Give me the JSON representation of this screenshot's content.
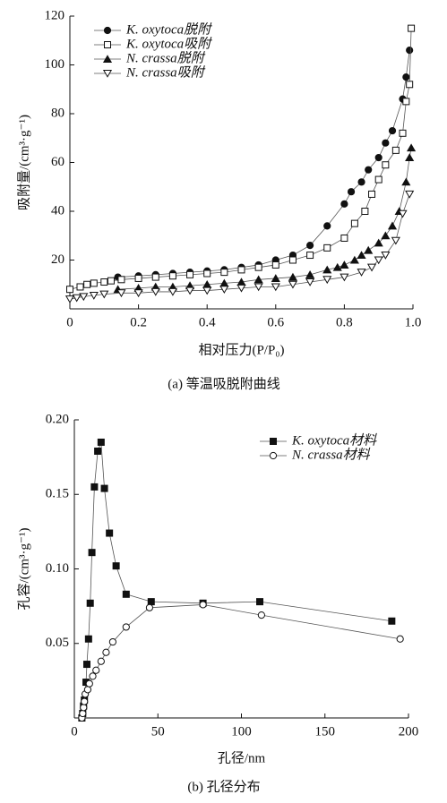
{
  "chart_data": [
    {
      "type": "line",
      "caption": "(a) 等温吸脱附曲线",
      "x_label": "相对压力(P/P₀)",
      "y_label": "吸附量/(cm³·g⁻¹)",
      "xlim": [
        0,
        1.0
      ],
      "ylim": [
        0,
        120
      ],
      "xticks": [
        0,
        0.2,
        0.4,
        0.6,
        0.8,
        {
          "value": 1.0,
          "label": "1.0"
        }
      ],
      "yticks": [
        20,
        40,
        60,
        80,
        100,
        120
      ],
      "legend": "upper left",
      "series": [
        {
          "name": "K. oxytoca脱附",
          "color": "#111111",
          "marker": "circle-filled",
          "x": [
            0.14,
            0.2,
            0.25,
            0.3,
            0.35,
            0.4,
            0.45,
            0.5,
            0.55,
            0.6,
            0.65,
            0.7,
            0.75,
            0.8,
            0.82,
            0.85,
            0.87,
            0.9,
            0.92,
            0.94,
            0.97,
            0.98,
            0.99
          ],
          "values": [
            13,
            13.5,
            14,
            14.5,
            15,
            15.5,
            16,
            17,
            18,
            20,
            22,
            26,
            34,
            43,
            48,
            52,
            57,
            62,
            68,
            73,
            86,
            95,
            106
          ]
        },
        {
          "name": "K. oxytoca吸附",
          "color": "#111111",
          "marker": "square-open",
          "x": [
            0.0,
            0.03,
            0.05,
            0.07,
            0.1,
            0.12,
            0.15,
            0.2,
            0.25,
            0.3,
            0.35,
            0.4,
            0.45,
            0.5,
            0.55,
            0.6,
            0.65,
            0.7,
            0.75,
            0.8,
            0.83,
            0.86,
            0.88,
            0.9,
            0.92,
            0.95,
            0.97,
            0.98,
            0.99,
            0.995
          ],
          "values": [
            8,
            9,
            10,
            10.5,
            11,
            11.5,
            12,
            12.5,
            13,
            13.5,
            14,
            14.5,
            15,
            16,
            17,
            18,
            20,
            22,
            25,
            29,
            35,
            40,
            47,
            53,
            59,
            65,
            72,
            85,
            92,
            115
          ]
        },
        {
          "name": "N. crassa脱附",
          "color": "#111111",
          "marker": "triangle-filled",
          "x": [
            0.14,
            0.2,
            0.25,
            0.3,
            0.35,
            0.4,
            0.45,
            0.5,
            0.55,
            0.6,
            0.65,
            0.7,
            0.75,
            0.78,
            0.8,
            0.83,
            0.85,
            0.87,
            0.9,
            0.92,
            0.94,
            0.96,
            0.98,
            0.99,
            0.995
          ],
          "values": [
            8,
            8.5,
            9,
            9,
            9.5,
            10,
            10.5,
            11,
            12,
            12.5,
            13,
            14,
            16,
            17,
            18,
            20,
            22,
            24,
            27,
            30,
            34,
            40,
            52,
            62,
            66
          ]
        },
        {
          "name": "N. crassa吸附",
          "color": "#111111",
          "marker": "triangle-down-open",
          "x": [
            0.0,
            0.02,
            0.04,
            0.07,
            0.1,
            0.15,
            0.2,
            0.25,
            0.3,
            0.35,
            0.4,
            0.45,
            0.5,
            0.55,
            0.6,
            0.65,
            0.7,
            0.75,
            0.8,
            0.85,
            0.88,
            0.9,
            0.92,
            0.95,
            0.97,
            0.99
          ],
          "values": [
            4,
            4.5,
            5,
            5.5,
            6,
            6.5,
            6.5,
            7,
            7,
            7.5,
            7.5,
            8,
            8.5,
            9,
            9,
            10,
            11,
            12,
            13,
            15,
            17,
            20,
            22,
            28,
            39,
            47
          ]
        }
      ]
    },
    {
      "type": "line",
      "caption": "(b) 孔径分布",
      "x_label": "孔径/nm",
      "y_label": "孔容/(cm³·g⁻¹)",
      "xlim": [
        0,
        200
      ],
      "ylim": [
        0,
        0.2
      ],
      "xticks": [
        0,
        50,
        100,
        150,
        200
      ],
      "yticks": [
        0.05,
        {
          "value": 0.1,
          "label": "0.10"
        },
        0.15,
        {
          "value": 0.2,
          "label": "0.20"
        }
      ],
      "legend": "upper right",
      "series": [
        {
          "name": "K. oxytoca材料",
          "color": "#111111",
          "marker": "square-filled",
          "x": [
            4.5,
            5,
            5.5,
            6,
            7,
            7.5,
            8.5,
            9.5,
            10.5,
            12,
            14,
            16,
            18,
            21,
            25,
            31,
            46,
            77,
            111,
            190
          ],
          "values": [
            0.0,
            0.003,
            0.008,
            0.012,
            0.024,
            0.036,
            0.053,
            0.077,
            0.111,
            0.155,
            0.179,
            0.185,
            0.154,
            0.124,
            0.102,
            0.083,
            0.078,
            0.077,
            0.078,
            0.065
          ]
        },
        {
          "name": "N. crassa材料",
          "color": "#111111",
          "marker": "circle-open",
          "x": [
            4.5,
            5,
            5.5,
            6,
            6.5,
            8,
            9,
            11,
            13,
            16,
            19,
            23,
            31,
            45,
            77,
            112,
            195
          ],
          "values": [
            0.0,
            0.003,
            0.007,
            0.011,
            0.016,
            0.019,
            0.023,
            0.028,
            0.032,
            0.038,
            0.044,
            0.051,
            0.061,
            0.074,
            0.076,
            0.069,
            0.053
          ]
        }
      ]
    }
  ]
}
